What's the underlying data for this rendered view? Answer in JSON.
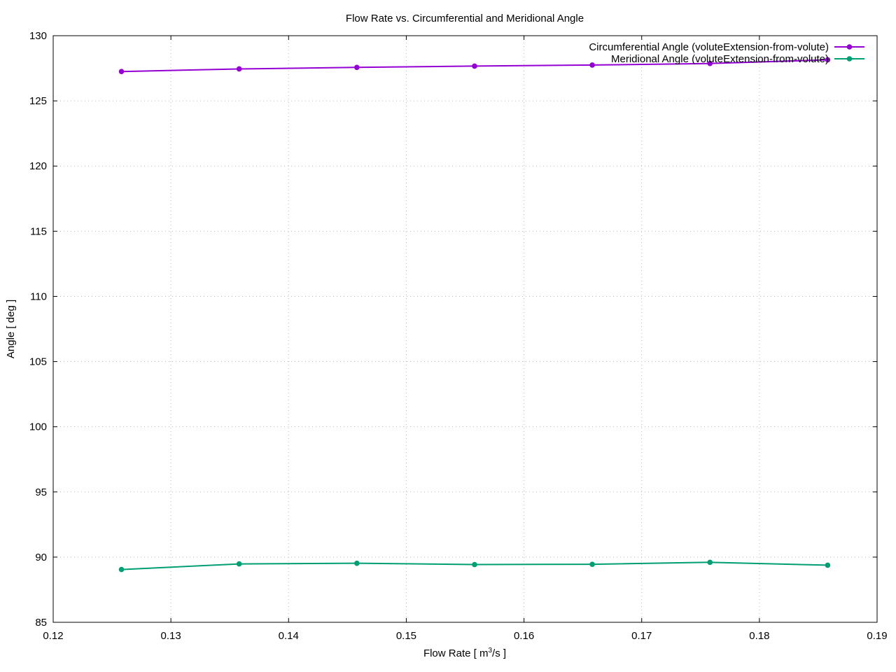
{
  "chart_data": {
    "type": "line",
    "title": "Flow Rate vs. Circumferential and Meridional Angle",
    "xlabel_main": "Flow Rate [ m",
    "xlabel_sup": "3",
    "xlabel_tail": "/s ]",
    "ylabel": "Angle [ deg ]",
    "xlim": [
      0.12,
      0.19
    ],
    "ylim": [
      85,
      130
    ],
    "xticks": [
      0.12,
      0.13,
      0.14,
      0.15,
      0.16,
      0.17,
      0.18,
      0.19
    ],
    "xtick_labels": [
      "0.12",
      "0.13",
      "0.14",
      "0.15",
      "0.16",
      "0.17",
      "0.18",
      "0.19"
    ],
    "yticks": [
      85,
      90,
      95,
      100,
      105,
      110,
      115,
      120,
      125,
      130
    ],
    "ytick_labels": [
      "85",
      "90",
      "95",
      "100",
      "105",
      "110",
      "115",
      "120",
      "125",
      "130"
    ],
    "grid": true,
    "legend_position": "top-right",
    "series": [
      {
        "name": "Circumferential Angle (voluteExtension-from-volute)",
        "color": "#9400d3",
        "x": [
          0.1258,
          0.1358,
          0.1458,
          0.1558,
          0.1658,
          0.1758,
          0.1858
        ],
        "y": [
          127.25,
          127.45,
          127.57,
          127.67,
          127.75,
          127.87,
          128.15
        ]
      },
      {
        "name": "Meridional Angle (voluteExtension-from-volute)",
        "color": "#009e73",
        "x": [
          0.1258,
          0.1358,
          0.1458,
          0.1558,
          0.1658,
          0.1758,
          0.1858
        ],
        "y": [
          89.05,
          89.48,
          89.53,
          89.43,
          89.45,
          89.6,
          89.38
        ]
      }
    ]
  }
}
